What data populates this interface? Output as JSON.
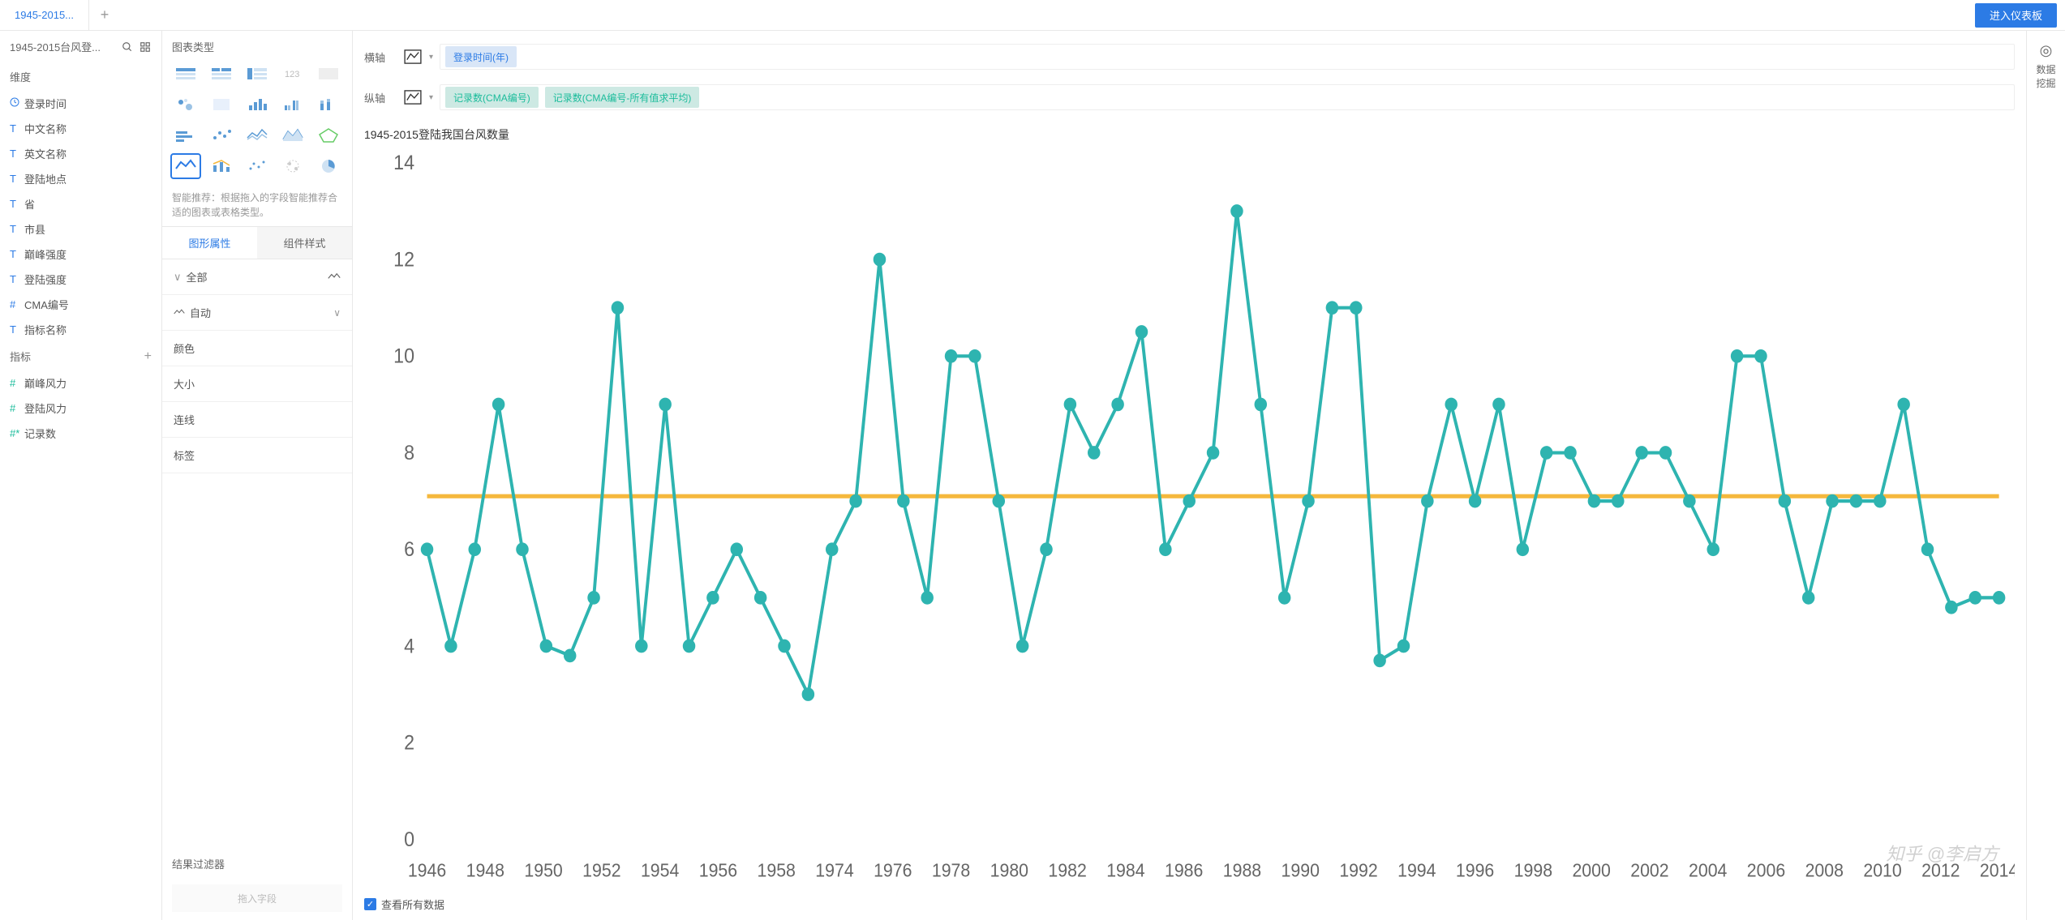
{
  "topbar": {
    "tab_label": "1945-2015...",
    "enter_dashboard": "进入仪表板"
  },
  "fields": {
    "header": "1945-2015台风登...",
    "dim_header": "维度",
    "metric_header": "指标",
    "dims": [
      {
        "icon": "clock",
        "label": "登录时间"
      },
      {
        "icon": "T",
        "label": "中文名称"
      },
      {
        "icon": "T",
        "label": "英文名称"
      },
      {
        "icon": "T",
        "label": "登陆地点"
      },
      {
        "icon": "T",
        "label": "省"
      },
      {
        "icon": "T",
        "label": "市县"
      },
      {
        "icon": "T",
        "label": "巅峰强度"
      },
      {
        "icon": "T",
        "label": "登陆强度"
      },
      {
        "icon": "#",
        "label": "CMA编号"
      },
      {
        "icon": "T",
        "label": "指标名称"
      }
    ],
    "metrics": [
      {
        "icon": "#",
        "label": "巅峰风力"
      },
      {
        "icon": "#",
        "label": "登陆风力"
      },
      {
        "icon": "#*",
        "label": "记录数"
      }
    ]
  },
  "charttype": {
    "header": "图表类型",
    "hint": "智能推荐：根据拖入的字段智能推荐合适的图表或表格类型。",
    "tabs": [
      "图形属性",
      "组件样式"
    ],
    "active_tab": 0,
    "props": {
      "all": "全部",
      "auto": "自动",
      "color": "颜色",
      "size": "大小",
      "line": "连线",
      "label": "标签"
    },
    "filter_header": "结果过滤器",
    "drop_hint": "拖入字段"
  },
  "axes": {
    "x_label": "横轴",
    "y_label": "纵轴",
    "x_pills": [
      "登录时间(年)"
    ],
    "y_pills": [
      "记录数(CMA编号)",
      "记录数(CMA编号-所有值求平均)"
    ]
  },
  "chart": {
    "title": "1945-2015登陆我国台风数量",
    "type": "line",
    "series_color": "#2eb4b0",
    "avg_color": "#f5b83d",
    "background_color": "#ffffff",
    "grid_color": "#e8e8e8",
    "marker_radius": 4,
    "line_width": 2,
    "y_axis": {
      "min": 0,
      "max": 14,
      "step": 2,
      "fontsize": 12,
      "color": "#666"
    },
    "x_axis": {
      "fontsize": 11,
      "color": "#666"
    },
    "avg_value": 7.1,
    "x_labels": [
      "1946",
      "1948",
      "1950",
      "1952",
      "1954",
      "1956",
      "1958",
      "1974",
      "1976",
      "1978",
      "1980",
      "1982",
      "1984",
      "1986",
      "1988",
      "1990",
      "1992",
      "1994",
      "1996",
      "1998",
      "2000",
      "2002",
      "2004",
      "2006",
      "2008",
      "2010",
      "2012",
      "2014"
    ],
    "values": [
      6,
      4,
      6,
      9,
      6,
      4,
      3.8,
      5,
      11,
      4,
      9,
      4,
      5,
      6,
      5,
      4,
      3,
      6,
      7,
      12,
      7,
      5,
      10,
      10,
      7,
      4,
      6,
      9,
      8,
      9,
      10.5,
      6,
      7,
      8,
      13,
      9,
      5,
      7,
      11,
      11,
      3.7,
      4,
      7,
      9,
      7,
      9,
      6,
      8,
      8,
      7,
      7,
      8,
      8,
      7,
      6,
      10,
      10,
      7,
      5,
      7,
      7,
      7,
      9,
      6,
      4.8,
      5,
      5
    ]
  },
  "footer": {
    "view_all": "查看所有数据"
  },
  "right_rail": {
    "label": "数据挖掘"
  },
  "watermark": "知乎 @李启方"
}
